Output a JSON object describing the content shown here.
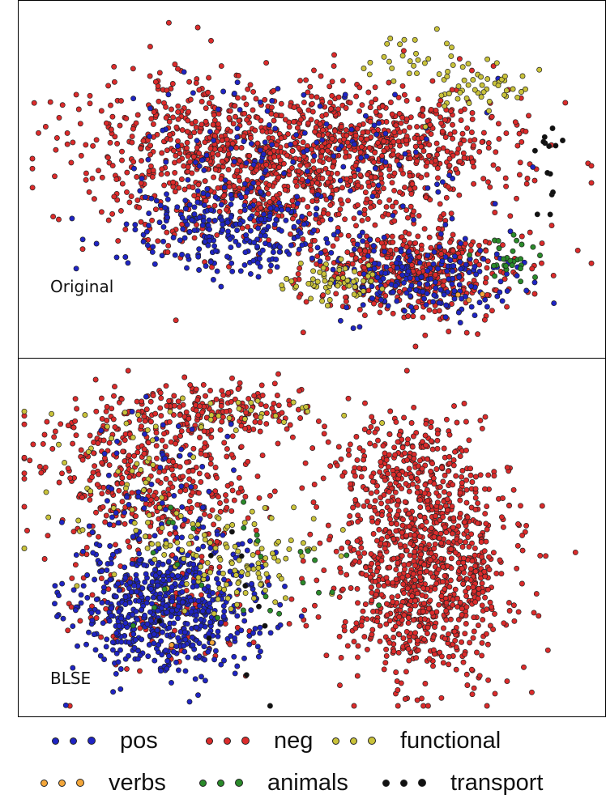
{
  "chart_data": [
    {
      "type": "scatter",
      "panel_label": "Original",
      "clusters": [
        {
          "series": "neg",
          "cx": -0.1,
          "cy": 0.08,
          "sx": 0.26,
          "sy": 0.22,
          "n": 900
        },
        {
          "series": "neg",
          "cx": 0.38,
          "cy": -0.55,
          "sx": 0.2,
          "sy": 0.14,
          "n": 450
        },
        {
          "series": "neg",
          "cx": 0.35,
          "cy": 0.2,
          "sx": 0.22,
          "sy": 0.18,
          "n": 350
        },
        {
          "series": "neg",
          "cx": -0.55,
          "cy": 0.15,
          "sx": 0.22,
          "sy": 0.28,
          "n": 250
        },
        {
          "series": "pos",
          "cx": -0.28,
          "cy": -0.28,
          "sx": 0.2,
          "sy": 0.14,
          "n": 260
        },
        {
          "series": "pos",
          "cx": 0.4,
          "cy": -0.58,
          "sx": 0.16,
          "sy": 0.12,
          "n": 200
        },
        {
          "series": "pos",
          "cx": -0.05,
          "cy": 0.15,
          "sx": 0.35,
          "sy": 0.25,
          "n": 130
        },
        {
          "series": "functional",
          "cx": 0.1,
          "cy": -0.62,
          "sx": 0.1,
          "sy": 0.06,
          "n": 60
        },
        {
          "series": "functional",
          "cx": 0.58,
          "cy": 0.55,
          "sx": 0.1,
          "sy": 0.08,
          "n": 50
        },
        {
          "series": "functional",
          "cx": 0.35,
          "cy": 0.72,
          "sx": 0.12,
          "sy": 0.08,
          "n": 25
        },
        {
          "series": "animals",
          "cx": 0.72,
          "cy": -0.48,
          "sx": 0.06,
          "sy": 0.08,
          "n": 28
        },
        {
          "series": "transport",
          "cx": 0.84,
          "cy": 0.1,
          "sx": 0.03,
          "sy": 0.2,
          "n": 14
        },
        {
          "series": "verbs",
          "cx": 0.55,
          "cy": -0.7,
          "sx": 0.05,
          "sy": 0.03,
          "n": 3
        }
      ]
    },
    {
      "type": "scatter",
      "panel_label": "BLSE",
      "clusters": [
        {
          "series": "neg",
          "cx": 0.42,
          "cy": -0.2,
          "sx": 0.16,
          "sy": 0.32,
          "n": 1000
        },
        {
          "series": "neg",
          "cx": -0.55,
          "cy": 0.35,
          "sx": 0.2,
          "sy": 0.25,
          "n": 420
        },
        {
          "series": "neg",
          "cx": -0.35,
          "cy": 0.75,
          "sx": 0.22,
          "sy": 0.08,
          "n": 200
        },
        {
          "series": "neg",
          "cx": 0.35,
          "cy": 0.45,
          "sx": 0.12,
          "sy": 0.14,
          "n": 200
        },
        {
          "series": "neg",
          "cx": -0.5,
          "cy": -0.35,
          "sx": 0.18,
          "sy": 0.22,
          "n": 150
        },
        {
          "series": "pos",
          "cx": -0.5,
          "cy": -0.4,
          "sx": 0.16,
          "sy": 0.22,
          "n": 650
        },
        {
          "series": "pos",
          "cx": -0.55,
          "cy": 0.35,
          "sx": 0.15,
          "sy": 0.25,
          "n": 60
        },
        {
          "series": "functional",
          "cx": -0.25,
          "cy": -0.12,
          "sx": 0.14,
          "sy": 0.16,
          "n": 110
        },
        {
          "series": "functional",
          "cx": -0.65,
          "cy": 0.3,
          "sx": 0.15,
          "sy": 0.25,
          "n": 50
        },
        {
          "series": "functional",
          "cx": -0.3,
          "cy": 0.75,
          "sx": 0.25,
          "sy": 0.06,
          "n": 30
        },
        {
          "series": "animals",
          "cx": -0.2,
          "cy": -0.2,
          "sx": 0.22,
          "sy": 0.22,
          "n": 28
        },
        {
          "series": "transport",
          "cx": -0.25,
          "cy": -0.3,
          "sx": 0.2,
          "sy": 0.3,
          "n": 10
        },
        {
          "series": "verbs",
          "cx": -0.35,
          "cy": -0.55,
          "sx": 0.1,
          "sy": 0.05,
          "n": 2
        }
      ]
    }
  ],
  "colors": {
    "pos": "#1f24c4",
    "neg": "#dc2b2b",
    "functional": "#c9c23a",
    "verbs": "#f3a63a",
    "animals": "#2a8a2a",
    "transport": "#111111",
    "point_edge": "#222222",
    "frame": "#000000"
  },
  "legend": {
    "items": [
      {
        "key": "pos",
        "label": "pos"
      },
      {
        "key": "neg",
        "label": "neg"
      },
      {
        "key": "functional",
        "label": "functional"
      },
      {
        "key": "verbs",
        "label": "verbs"
      },
      {
        "key": "animals",
        "label": "animals"
      },
      {
        "key": "transport",
        "label": "transport"
      }
    ]
  }
}
